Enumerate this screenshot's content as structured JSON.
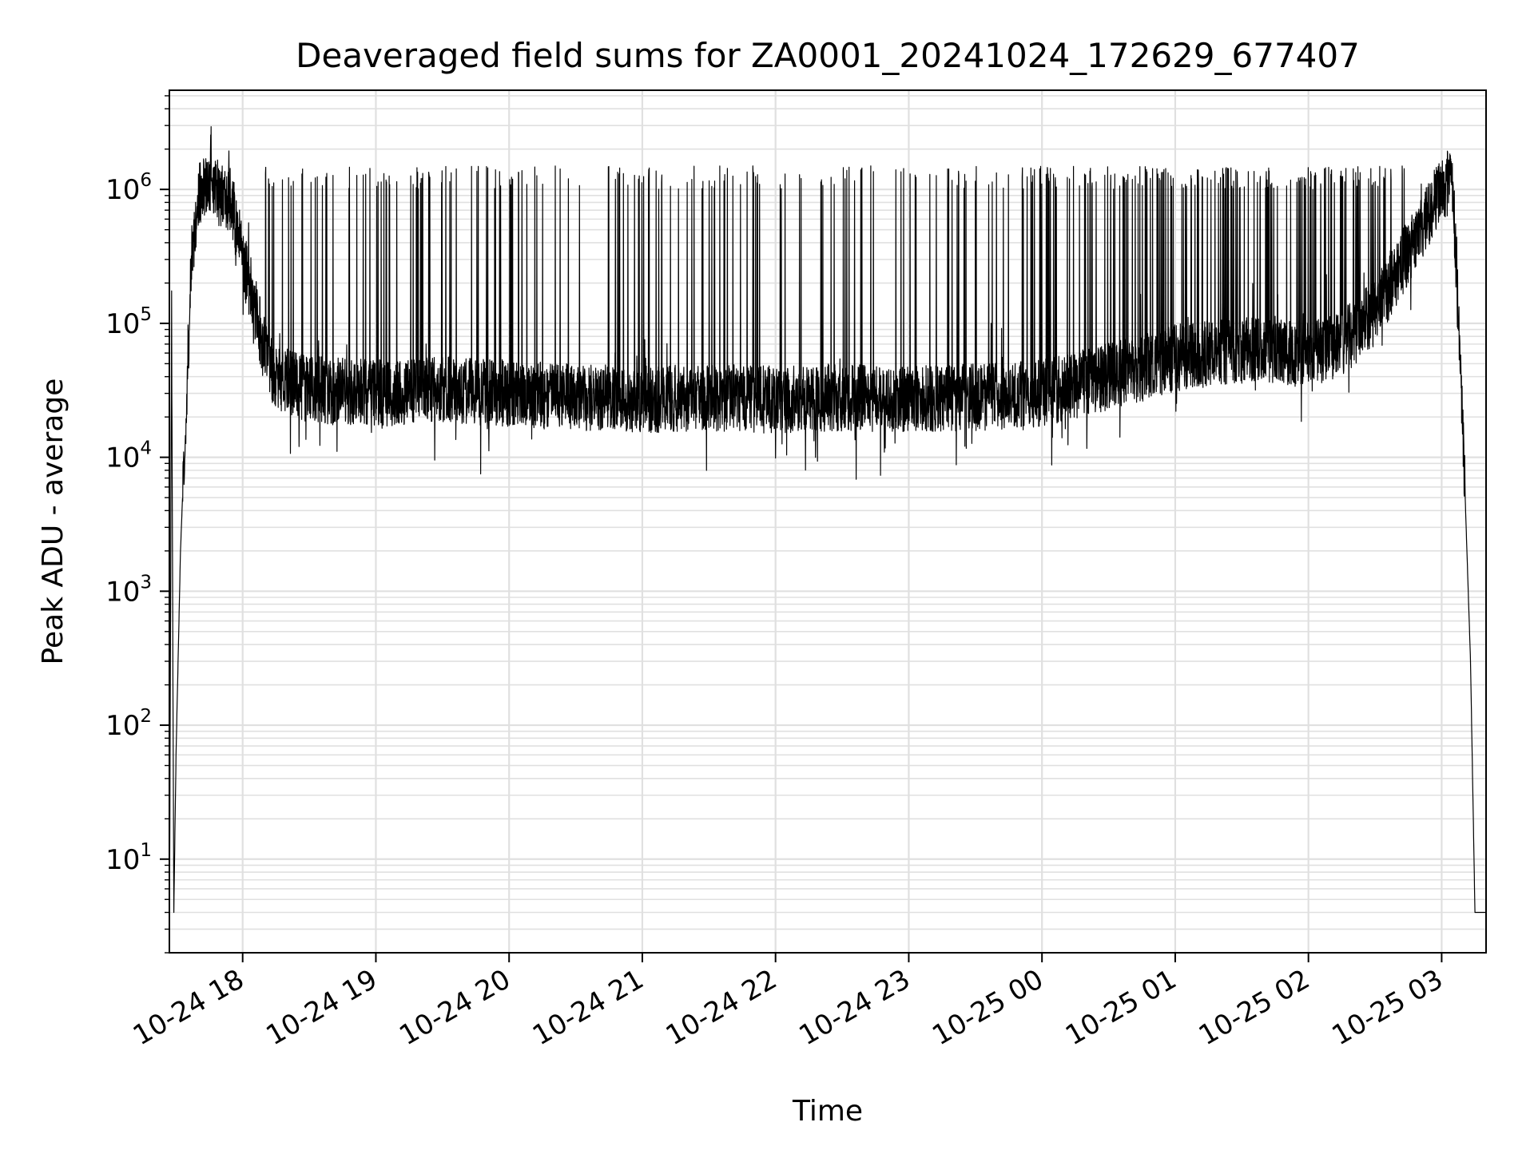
{
  "chart_data": {
    "type": "line",
    "title": "Deaveraged field sums for ZA0001_20241024_172629_677407",
    "xlabel": "Time",
    "ylabel": "Peak ADU - average",
    "yscale": "log",
    "ylim": [
      2,
      5500000
    ],
    "xlim": [
      "2024-10-24 17:27",
      "2024-10-25 03:20"
    ],
    "grid": true,
    "line_color": "#000000",
    "grid_color": "#e0e0e0",
    "x_ticks": [
      {
        "label": "10-24 18",
        "time": "2024-10-24 18:00"
      },
      {
        "label": "10-24 19",
        "time": "2024-10-24 19:00"
      },
      {
        "label": "10-24 20",
        "time": "2024-10-24 20:00"
      },
      {
        "label": "10-24 21",
        "time": "2024-10-24 21:00"
      },
      {
        "label": "10-24 22",
        "time": "2024-10-24 22:00"
      },
      {
        "label": "10-24 23",
        "time": "2024-10-24 23:00"
      },
      {
        "label": "10-25 00",
        "time": "2024-10-25 00:00"
      },
      {
        "label": "10-25 01",
        "time": "2024-10-25 01:00"
      },
      {
        "label": "10-25 02",
        "time": "2024-10-25 02:00"
      },
      {
        "label": "10-25 03",
        "time": "2024-10-25 03:00"
      }
    ],
    "y_ticks": [
      {
        "base": "10",
        "exp": "1",
        "value": 10
      },
      {
        "base": "10",
        "exp": "2",
        "value": 100
      },
      {
        "base": "10",
        "exp": "3",
        "value": 1000
      },
      {
        "base": "10",
        "exp": "4",
        "value": 10000
      },
      {
        "base": "10",
        "exp": "5",
        "value": 100000
      },
      {
        "base": "10",
        "exp": "6",
        "value": 1000000
      }
    ],
    "series": [
      {
        "baseline_points": [
          [
            "2024-10-24 17:27",
            2
          ],
          [
            "2024-10-24 17:28",
            110000
          ],
          [
            "2024-10-24 17:29",
            4
          ],
          [
            "2024-10-24 17:30",
            60
          ],
          [
            "2024-10-24 17:32",
            2000
          ],
          [
            "2024-10-24 17:35",
            40000
          ],
          [
            "2024-10-24 17:37",
            300000
          ],
          [
            "2024-10-24 17:40",
            900000
          ],
          [
            "2024-10-24 17:45",
            1100000
          ],
          [
            "2024-10-24 17:50",
            900000
          ],
          [
            "2024-10-24 17:55",
            800000
          ],
          [
            "2024-10-24 18:00",
            300000
          ],
          [
            "2024-10-24 18:05",
            150000
          ],
          [
            "2024-10-24 18:10",
            60000
          ],
          [
            "2024-10-24 18:15",
            40000
          ],
          [
            "2024-10-24 18:30",
            32000
          ],
          [
            "2024-10-24 19:00",
            30000
          ],
          [
            "2024-10-24 19:30",
            32000
          ],
          [
            "2024-10-24 20:00",
            30000
          ],
          [
            "2024-10-24 20:30",
            28000
          ],
          [
            "2024-10-24 21:00",
            27000
          ],
          [
            "2024-10-24 21:30",
            28000
          ],
          [
            "2024-10-24 22:00",
            27000
          ],
          [
            "2024-10-24 22:30",
            28000
          ],
          [
            "2024-10-24 23:00",
            27000
          ],
          [
            "2024-10-24 23:30",
            28000
          ],
          [
            "2024-10-25 00:00",
            30000
          ],
          [
            "2024-10-25 00:30",
            40000
          ],
          [
            "2024-10-25 01:00",
            55000
          ],
          [
            "2024-10-25 01:30",
            65000
          ],
          [
            "2024-10-25 02:00",
            60000
          ],
          [
            "2024-10-25 02:15",
            70000
          ],
          [
            "2024-10-25 02:30",
            120000
          ],
          [
            "2024-10-25 02:45",
            350000
          ],
          [
            "2024-10-25 03:00",
            1000000
          ],
          [
            "2024-10-25 03:05",
            1200000
          ],
          [
            "2024-10-25 03:10",
            10000
          ],
          [
            "2024-10-25 03:13",
            300
          ],
          [
            "2024-10-25 03:15",
            4
          ],
          [
            "2024-10-25 03:20",
            4
          ]
        ],
        "spike_peak_range": [
          1000000,
          1500000
        ],
        "spike_density_per_hour": [
          {
            "from": "2024-10-24 18:10",
            "to": "2024-10-24 23:50",
            "count": 30
          },
          {
            "from": "2024-10-24 23:50",
            "to": "2024-10-25 02:45",
            "count": 70
          }
        ]
      }
    ]
  }
}
